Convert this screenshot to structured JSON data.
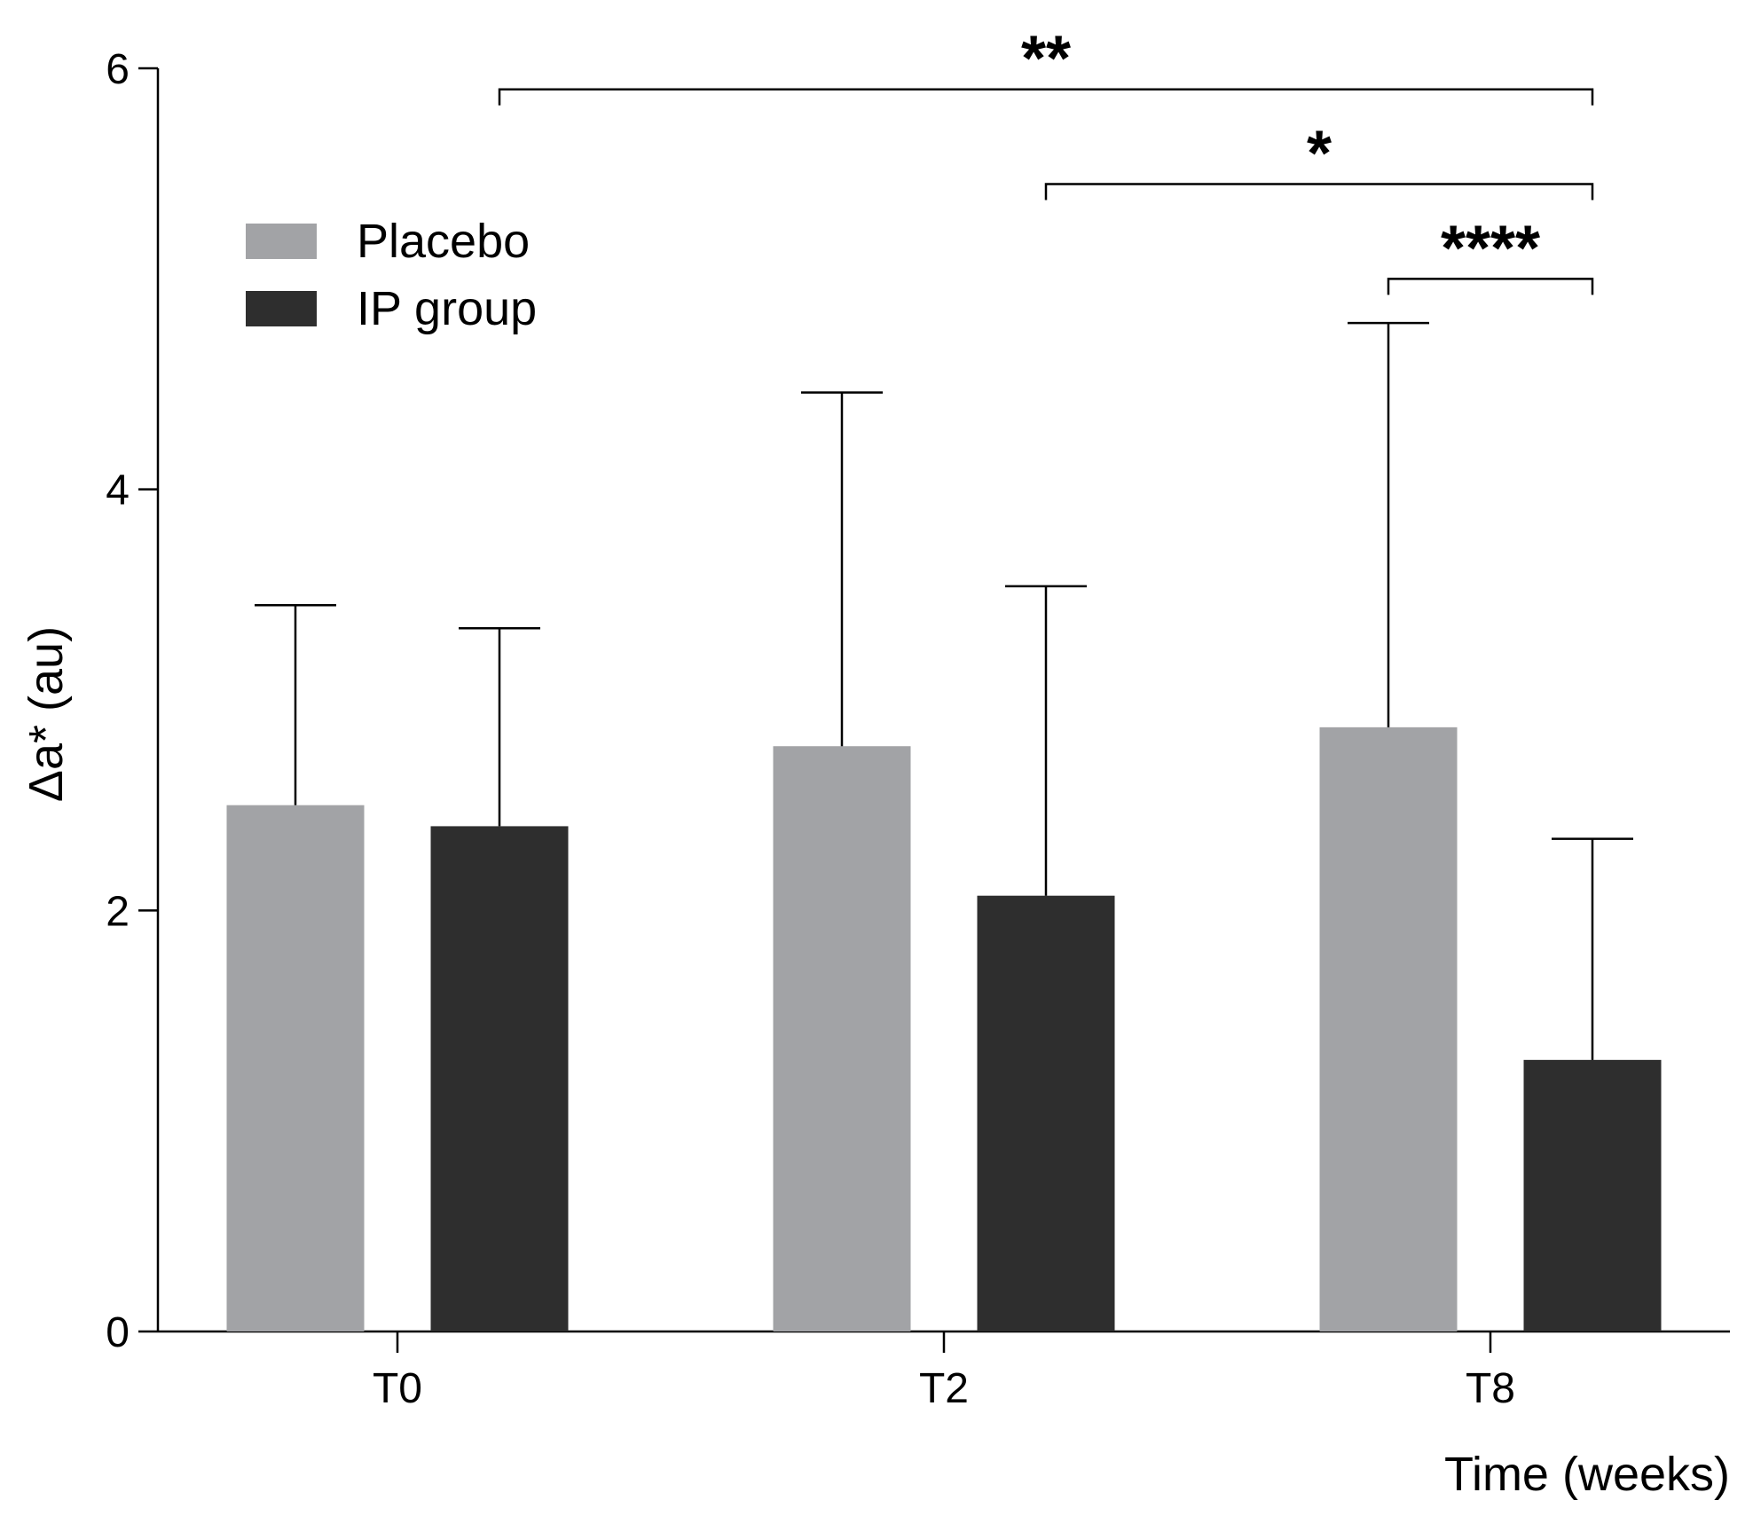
{
  "chart_data": {
    "type": "bar",
    "categories": [
      "T0",
      "T2",
      "T8"
    ],
    "series": [
      {
        "name": "Placebo",
        "color": "#a2a3a6",
        "values": [
          2.5,
          2.78,
          2.87
        ],
        "errors": [
          0.95,
          1.68,
          1.92
        ]
      },
      {
        "name": "IP group",
        "color": "#2e2e2e",
        "values": [
          2.4,
          2.07,
          1.29
        ],
        "errors": [
          0.94,
          1.47,
          1.05
        ]
      }
    ],
    "title": "",
    "xlabel": "Time (weeks)",
    "ylabel": "Δa* (au)",
    "ylim": [
      0,
      6
    ],
    "yticks": [
      0,
      2,
      4,
      6
    ],
    "legend": "top-left",
    "significance": [
      {
        "from": {
          "category": 0,
          "series": 1
        },
        "to": {
          "category": 2,
          "series": 1
        },
        "level": 5.9,
        "label": "**"
      },
      {
        "from": {
          "category": 1,
          "series": 1
        },
        "to": {
          "category": 2,
          "series": 1
        },
        "level": 5.45,
        "label": "*"
      },
      {
        "from": {
          "category": 2,
          "series": 0
        },
        "to": {
          "category": 2,
          "series": 1
        },
        "level": 5.0,
        "label": "****"
      }
    ]
  }
}
